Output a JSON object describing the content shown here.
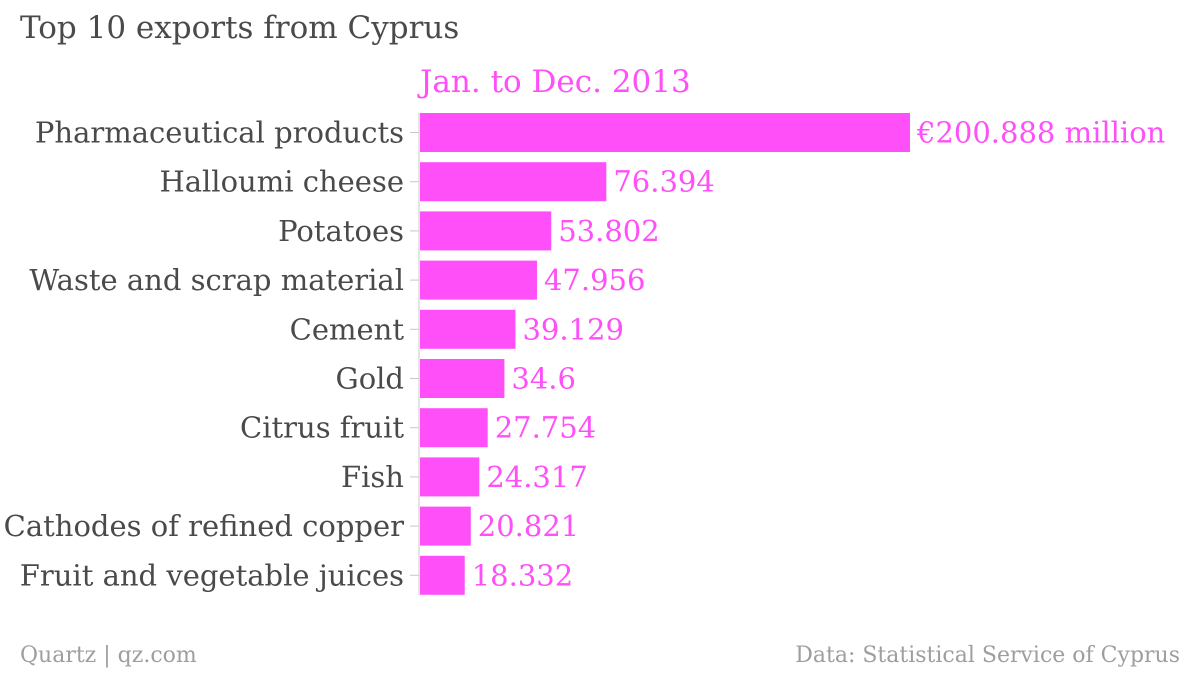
{
  "chart_data": {
    "type": "bar",
    "orientation": "horizontal",
    "title": "Top 10 exports from Cyprus",
    "series": [
      {
        "name": "Jan. to Dec. 2013",
        "color": "#ff4ff8",
        "values": [
          200.888,
          76.394,
          53.802,
          47.956,
          39.129,
          34.6,
          27.754,
          24.317,
          20.821,
          18.332
        ],
        "value_labels": [
          "€200.888 million",
          "76.394",
          "53.802",
          "47.956",
          "39.129",
          "34.6",
          "27.754",
          "24.317",
          "20.821",
          "18.332"
        ]
      }
    ],
    "categories": [
      "Pharmaceutical products",
      "Halloumi cheese",
      "Potatoes",
      "Waste and scrap material",
      "Cement",
      "Gold",
      "Citrus fruit",
      "Fish",
      "Cathodes of refined copper",
      "Fruit and vegetable juices"
    ],
    "xlim": [
      0,
      200.888
    ],
    "grid": false
  },
  "footer": {
    "source_left": "Quartz | qz.com",
    "source_right": "Data: Statistical Service of Cyprus"
  },
  "colors": {
    "bar": "#ff4ff8",
    "label_text": "#4a4a4a",
    "value_text": "#ff4ff8",
    "footer_text": "#9e9e9e",
    "axis": "#c8c8c8"
  }
}
